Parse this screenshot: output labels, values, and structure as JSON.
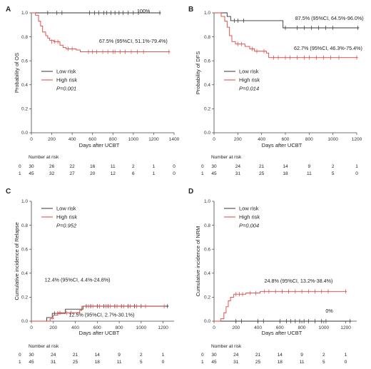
{
  "chart_data": [
    {
      "type": "line",
      "panel": "A",
      "ylabel": "Probability of OS",
      "xlabel": "Days after UCBT",
      "xlim": [
        0,
        1400
      ],
      "ylim": [
        0,
        1.0
      ],
      "x_ticks": [
        "0",
        "200",
        "400",
        "600",
        "800",
        "1000",
        "1200",
        "1400"
      ],
      "y_ticks": [
        "0.0",
        "0.2",
        "0.4",
        "0.6",
        "0.8",
        "1.0"
      ],
      "legend": {
        "placement": "center-left",
        "items": [
          "Low risk",
          "High risk"
        ],
        "pvalue": "P=0.001"
      },
      "annotations": [
        {
          "text": "100%",
          "x": 1100,
          "y": 1.0
        },
        {
          "text": "67.5% (95%CI, 51.1%-79.4%)",
          "x": 1000,
          "y": 0.75
        }
      ],
      "series": [
        {
          "name": "Low risk",
          "color": "#333333",
          "steps": [
            [
              0,
              1.0
            ],
            [
              1270,
              1.0
            ]
          ],
          "censor": [
            [
              570,
              1.0
            ],
            [
              620,
              1.0
            ],
            [
              660,
              1.0
            ],
            [
              710,
              1.0
            ],
            [
              740,
              1.0
            ],
            [
              780,
              1.0
            ],
            [
              820,
              1.0
            ],
            [
              860,
              1.0
            ],
            [
              900,
              1.0
            ],
            [
              950,
              1.0
            ],
            [
              1000,
              1.0
            ],
            [
              1050,
              1.0
            ],
            [
              1260,
              1.0
            ],
            [
              160,
              1.0
            ],
            [
              250,
              1.0
            ],
            [
              300,
              1.0
            ]
          ]
        },
        {
          "name": "High risk",
          "color": "#e2403b",
          "steps": [
            [
              0,
              1.0
            ],
            [
              40,
              0.98
            ],
            [
              70,
              0.93
            ],
            [
              90,
              0.89
            ],
            [
              110,
              0.84
            ],
            [
              140,
              0.81
            ],
            [
              160,
              0.79
            ],
            [
              180,
              0.77
            ],
            [
              220,
              0.76
            ],
            [
              280,
              0.73
            ],
            [
              310,
              0.71
            ],
            [
              340,
              0.7
            ],
            [
              440,
              0.69
            ],
            [
              480,
              0.675
            ],
            [
              1360,
              0.675
            ]
          ],
          "censor": [
            [
              200,
              0.76
            ],
            [
              230,
              0.76
            ],
            [
              260,
              0.76
            ],
            [
              360,
              0.7
            ],
            [
              400,
              0.7
            ],
            [
              560,
              0.675
            ],
            [
              600,
              0.675
            ],
            [
              640,
              0.675
            ],
            [
              700,
              0.675
            ],
            [
              750,
              0.675
            ],
            [
              800,
              0.675
            ],
            [
              820,
              0.675
            ],
            [
              870,
              0.675
            ],
            [
              920,
              0.675
            ],
            [
              980,
              0.675
            ],
            [
              1040,
              0.675
            ],
            [
              1100,
              0.675
            ],
            [
              1350,
              0.675
            ]
          ]
        }
      ],
      "risk_table": {
        "header": "Number at risk",
        "rows": [
          {
            "label": "0",
            "values": [
              "30",
              "26",
              "22",
              "16",
              "11",
              "2",
              "1",
              "0"
            ]
          },
          {
            "label": "1",
            "values": [
              "45",
              "32",
              "27",
              "20",
              "12",
              "6",
              "1",
              "0"
            ]
          }
        ]
      }
    },
    {
      "type": "line",
      "panel": "B",
      "ylabel": "Probability of DFS",
      "xlabel": "Days after UCBT",
      "xlim": [
        0,
        1200
      ],
      "ylim": [
        0,
        1.0
      ],
      "x_ticks": [
        "0",
        "200",
        "400",
        "600",
        "800",
        "1000",
        "1200"
      ],
      "y_ticks": [
        "0.0",
        "0.2",
        "0.4",
        "0.6",
        "0.8",
        "1.0"
      ],
      "legend": {
        "placement": "center-left",
        "items": [
          "Low risk",
          "High risk"
        ],
        "pvalue": "P=0.014"
      },
      "annotations": [
        {
          "text": "87.5% (95%CI, 64.5%-96.0%)",
          "x": 970,
          "y": 0.94
        },
        {
          "text": "62.7% (95%CI, 46.3%-75.4%)",
          "x": 960,
          "y": 0.69
        }
      ],
      "series": [
        {
          "name": "Low risk",
          "color": "#333333",
          "steps": [
            [
              0,
              1.0
            ],
            [
              110,
              0.97
            ],
            [
              140,
              0.935
            ],
            [
              580,
              0.875
            ],
            [
              1220,
              0.875
            ]
          ],
          "censor": [
            [
              170,
              0.935
            ],
            [
              200,
              0.935
            ],
            [
              250,
              0.935
            ],
            [
              600,
              0.875
            ],
            [
              700,
              0.875
            ],
            [
              760,
              0.875
            ],
            [
              820,
              0.875
            ],
            [
              880,
              0.875
            ],
            [
              940,
              0.875
            ],
            [
              1000,
              0.875
            ],
            [
              1210,
              0.875
            ]
          ]
        },
        {
          "name": "High risk",
          "color": "#e2403b",
          "steps": [
            [
              0,
              1.0
            ],
            [
              60,
              0.97
            ],
            [
              90,
              0.93
            ],
            [
              110,
              0.88
            ],
            [
              130,
              0.81
            ],
            [
              150,
              0.76
            ],
            [
              180,
              0.74
            ],
            [
              260,
              0.72
            ],
            [
              300,
              0.7
            ],
            [
              340,
              0.68
            ],
            [
              440,
              0.665
            ],
            [
              460,
              0.627
            ],
            [
              1210,
              0.627
            ]
          ],
          "censor": [
            [
              200,
              0.74
            ],
            [
              230,
              0.74
            ],
            [
              320,
              0.7
            ],
            [
              360,
              0.68
            ],
            [
              420,
              0.68
            ],
            [
              500,
              0.627
            ],
            [
              540,
              0.627
            ],
            [
              600,
              0.627
            ],
            [
              640,
              0.627
            ],
            [
              700,
              0.627
            ],
            [
              760,
              0.627
            ],
            [
              800,
              0.627
            ],
            [
              860,
              0.627
            ],
            [
              920,
              0.627
            ],
            [
              980,
              0.627
            ],
            [
              1050,
              0.627
            ],
            [
              1200,
              0.627
            ]
          ]
        }
      ],
      "risk_table": {
        "header": "Number at risk",
        "rows": [
          {
            "label": "0",
            "values": [
              "30",
              "24",
              "21",
              "14",
              "9",
              "2",
              "1"
            ]
          },
          {
            "label": "1",
            "values": [
              "45",
              "31",
              "25",
              "18",
              "11",
              "5",
              "0"
            ]
          }
        ]
      }
    },
    {
      "type": "line",
      "panel": "C",
      "ylabel": "Cumulative incidence of Relapse",
      "xlabel": "Days after UCBT",
      "xlim": [
        0,
        1300
      ],
      "ylim": [
        0,
        1.0
      ],
      "x_ticks": [
        "0",
        "200",
        "400",
        "600",
        "800",
        "1000",
        "1200"
      ],
      "y_ticks": [
        "0.0",
        "0.2",
        "0.4",
        "0.6",
        "0.8",
        "1.0"
      ],
      "legend": {
        "placement": "top-left",
        "items": [
          "Low risk",
          "High risk"
        ],
        "pvalue": "P=0.952"
      },
      "annotations": [
        {
          "text": "12.4% (95%CI, 4.4%-24.8%)",
          "x": 420,
          "y": 0.33
        },
        {
          "text": "12.5% (95%CI, 2.7%-30.1%)",
          "x": 640,
          "y": 0.04
        }
      ],
      "series": [
        {
          "name": "Low risk",
          "color": "#333333",
          "steps": [
            [
              0,
              0.0
            ],
            [
              140,
              0.03
            ],
            [
              190,
              0.065
            ],
            [
              310,
              0.1
            ],
            [
              470,
              0.125
            ],
            [
              1250,
              0.125
            ]
          ],
          "censor": [
            [
              210,
              0.065
            ],
            [
              240,
              0.065
            ],
            [
              500,
              0.125
            ],
            [
              540,
              0.125
            ],
            [
              600,
              0.125
            ],
            [
              660,
              0.125
            ],
            [
              700,
              0.125
            ],
            [
              760,
              0.125
            ],
            [
              820,
              0.125
            ],
            [
              880,
              0.125
            ],
            [
              940,
              0.125
            ],
            [
              1000,
              0.125
            ],
            [
              1240,
              0.125
            ]
          ]
        },
        {
          "name": "High risk",
          "color": "#e2403b",
          "steps": [
            [
              0,
              0.0
            ],
            [
              170,
              0.02
            ],
            [
              200,
              0.05
            ],
            [
              240,
              0.07
            ],
            [
              440,
              0.09
            ],
            [
              460,
              0.124
            ],
            [
              1220,
              0.124
            ]
          ],
          "censor": [
            [
              260,
              0.07
            ],
            [
              320,
              0.07
            ],
            [
              360,
              0.07
            ],
            [
              520,
              0.124
            ],
            [
              560,
              0.124
            ],
            [
              620,
              0.124
            ],
            [
              680,
              0.124
            ],
            [
              720,
              0.124
            ],
            [
              780,
              0.124
            ],
            [
              840,
              0.124
            ],
            [
              900,
              0.124
            ],
            [
              960,
              0.124
            ],
            [
              1040,
              0.124
            ],
            [
              1210,
              0.124
            ]
          ]
        }
      ],
      "risk_table": {
        "header": "Number at risk",
        "rows": [
          {
            "label": "0",
            "values": [
              "30",
              "24",
              "21",
              "14",
              "9",
              "2",
              "1"
            ]
          },
          {
            "label": "1",
            "values": [
              "45",
              "31",
              "25",
              "18",
              "11",
              "5",
              "0"
            ]
          }
        ]
      }
    },
    {
      "type": "line",
      "panel": "D",
      "ylabel": "Cumulative incidence of NRM",
      "xlabel": "Days after UCBT",
      "xlim": [
        0,
        1300
      ],
      "ylim": [
        0,
        1.0
      ],
      "x_ticks": [
        "0",
        "200",
        "400",
        "600",
        "800",
        "1000",
        "1200"
      ],
      "y_ticks": [
        "0.0",
        "0.2",
        "0.4",
        "0.6",
        "0.8",
        "1.0"
      ],
      "legend": {
        "placement": "top-left",
        "items": [
          "Low risk",
          "High risk"
        ],
        "pvalue": "P=0.004"
      },
      "annotations": [
        {
          "text": "24.8% (95%CI, 13.2%-38.4%)",
          "x": 770,
          "y": 0.32
        },
        {
          "text": "0%",
          "x": 1050,
          "y": 0.07
        }
      ],
      "series": [
        {
          "name": "Low risk",
          "color": "#333333",
          "steps": [
            [
              0,
              0.0
            ],
            [
              1250,
              0.0
            ]
          ],
          "censor": [
            [
              200,
              0.0
            ],
            [
              250,
              0.0
            ],
            [
              400,
              0.0
            ],
            [
              450,
              0.0
            ],
            [
              600,
              0.0
            ],
            [
              660,
              0.0
            ],
            [
              700,
              0.0
            ],
            [
              740,
              0.0
            ],
            [
              780,
              0.0
            ],
            [
              820,
              0.0
            ],
            [
              860,
              0.0
            ],
            [
              920,
              0.0
            ],
            [
              980,
              0.0
            ],
            [
              1020,
              0.0
            ],
            [
              1240,
              0.0
            ]
          ]
        },
        {
          "name": "High risk",
          "color": "#e2403b",
          "steps": [
            [
              0,
              0.0
            ],
            [
              60,
              0.02
            ],
            [
              90,
              0.07
            ],
            [
              110,
              0.12
            ],
            [
              130,
              0.17
            ],
            [
              150,
              0.2
            ],
            [
              180,
              0.225
            ],
            [
              290,
              0.235
            ],
            [
              420,
              0.248
            ],
            [
              1210,
              0.248
            ]
          ],
          "censor": [
            [
              200,
              0.225
            ],
            [
              230,
              0.225
            ],
            [
              260,
              0.225
            ],
            [
              330,
              0.235
            ],
            [
              380,
              0.235
            ],
            [
              460,
              0.248
            ],
            [
              500,
              0.248
            ],
            [
              560,
              0.248
            ],
            [
              620,
              0.248
            ],
            [
              680,
              0.248
            ],
            [
              740,
              0.248
            ],
            [
              800,
              0.248
            ],
            [
              860,
              0.248
            ],
            [
              920,
              0.248
            ],
            [
              980,
              0.248
            ],
            [
              1040,
              0.248
            ],
            [
              1200,
              0.248
            ]
          ]
        }
      ],
      "risk_table": {
        "header": "Number at risk",
        "rows": [
          {
            "label": "0",
            "values": [
              "30",
              "24",
              "21",
              "14",
              "9",
              "2",
              "1"
            ]
          },
          {
            "label": "1",
            "values": [
              "45",
              "31",
              "25",
              "18",
              "11",
              "5",
              "0"
            ]
          }
        ]
      }
    }
  ]
}
